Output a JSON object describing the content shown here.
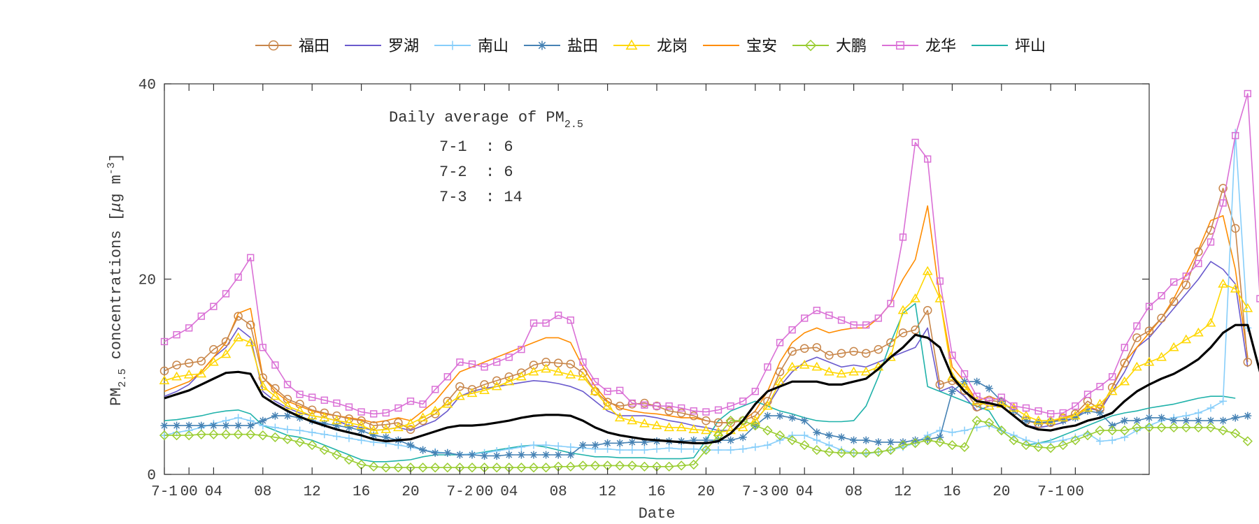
{
  "chart_data": {
    "type": "line",
    "xlabel": "Date",
    "ylabel": "PM2.5 concentrations [μg m-3]",
    "ylabel_parts": {
      "pm": "PM",
      "pm_sub": "2.5",
      "mid": " concentrations [",
      "mu": "μ",
      "unit": "g m",
      "sup": "-3",
      "end": "]"
    },
    "ylim": [
      0,
      40
    ],
    "yticks": [
      0,
      20,
      40
    ],
    "x_tick_labels": [
      "7-1",
      "00",
      "04",
      "08",
      "12",
      "16",
      "20",
      "7-2",
      "00",
      "04",
      "08",
      "12",
      "16",
      "20",
      "7-3",
      "00",
      "04",
      "08",
      "12",
      "16",
      "20",
      "7-1",
      "00"
    ],
    "x_tick_hours": [
      0,
      2,
      4,
      8,
      12,
      16,
      20,
      24,
      26,
      28,
      32,
      36,
      40,
      44,
      48,
      50,
      52,
      56,
      60,
      64,
      68,
      72,
      74
    ],
    "x_range": [
      0,
      80
    ],
    "legend_position": "top",
    "grid": false,
    "annotation": {
      "title_prefix": "Daily average of PM",
      "title_sub": "2.5",
      "lines": [
        "7-1  : 6",
        "7-2  : 6",
        "7-3  : 14"
      ]
    },
    "series": [
      {
        "name": "福田",
        "color": "#c8864a",
        "marker": "circle",
        "values": [
          10.6,
          11.2,
          11.4,
          11.6,
          12.8,
          13.6,
          16.2,
          15.3,
          9.9,
          8.8,
          7.7,
          7.2,
          6.6,
          6.3,
          6.0,
          5.7,
          5.5,
          5.0,
          5.1,
          5.3,
          4.6,
          5.5,
          6.2,
          7.5,
          9.0,
          8.7,
          9.2,
          9.6,
          10.0,
          10.4,
          11.2,
          11.5,
          11.4,
          11.3,
          10.4,
          8.5,
          7.4,
          7.0,
          7.2,
          7.3,
          7.0,
          6.5,
          6.3,
          6.0,
          5.5,
          5.3,
          5.3,
          5.5,
          6.0,
          7.5,
          10.5,
          12.6,
          12.9,
          13.0,
          12.2,
          12.4,
          12.6,
          12.4,
          12.8,
          13.5,
          14.5,
          14.8,
          16.8,
          9.2,
          9.6,
          8.6,
          6.9,
          7.6,
          7.4,
          6.5,
          5.5,
          5.2,
          5.3,
          5.8,
          6.2,
          7.5,
          6.7,
          8.9,
          11.4,
          14.0,
          14.7,
          16.0,
          17.7,
          19.4,
          22.8,
          25.0,
          29.3,
          25.2,
          11.5
        ]
      },
      {
        "name": "罗湖",
        "color": "#6a5acd",
        "marker": "none",
        "values": [
          8.0,
          8.5,
          9.2,
          10.5,
          12.0,
          13.0,
          15.0,
          14.0,
          8.5,
          7.5,
          6.8,
          6.3,
          6.0,
          5.8,
          5.5,
          5.0,
          4.8,
          4.5,
          4.6,
          4.8,
          4.5,
          5.0,
          5.5,
          6.5,
          8.0,
          8.5,
          8.8,
          9.0,
          9.2,
          9.4,
          9.6,
          9.5,
          9.3,
          9.0,
          8.5,
          7.5,
          6.5,
          6.0,
          6.0,
          6.0,
          5.8,
          5.5,
          5.3,
          5.0,
          4.8,
          4.5,
          4.5,
          4.8,
          5.5,
          7.0,
          9.0,
          10.5,
          11.5,
          12.0,
          11.5,
          11.0,
          11.2,
          11.0,
          11.5,
          12.0,
          12.5,
          13.0,
          15.0,
          8.5,
          9.0,
          8.0,
          6.5,
          7.0,
          7.0,
          6.0,
          5.0,
          4.8,
          5.0,
          5.3,
          5.8,
          6.8,
          6.5,
          8.5,
          10.5,
          13.0,
          14.0,
          15.5,
          17.0,
          18.5,
          20.0,
          21.8,
          21.0,
          19.5,
          11.0
        ]
      },
      {
        "name": "南山",
        "color": "#87cefa",
        "marker": "plus",
        "values": [
          4.0,
          4.3,
          4.5,
          4.8,
          5.2,
          5.5,
          5.8,
          5.5,
          5.0,
          4.8,
          4.6,
          4.5,
          4.3,
          4.1,
          3.9,
          3.7,
          3.5,
          3.3,
          3.2,
          3.0,
          2.8,
          2.5,
          2.3,
          2.2,
          2.0,
          2.1,
          2.2,
          2.4,
          2.6,
          2.8,
          3.0,
          3.0,
          2.9,
          2.8,
          2.7,
          2.6,
          2.6,
          2.5,
          2.5,
          2.5,
          2.6,
          2.7,
          2.6,
          2.6,
          2.5,
          2.5,
          2.5,
          2.6,
          2.8,
          3.0,
          3.5,
          4.0,
          4.0,
          3.5,
          3.0,
          2.5,
          2.2,
          2.1,
          2.3,
          2.5,
          2.8,
          3.2,
          4.0,
          4.5,
          4.3,
          4.5,
          4.8,
          5.0,
          4.5,
          4.0,
          3.5,
          3.2,
          3.3,
          3.5,
          3.8,
          4.2,
          3.4,
          3.5,
          3.8,
          4.5,
          5.0,
          5.5,
          5.8,
          6.0,
          6.3,
          6.8,
          7.5,
          35.0,
          15.0
        ]
      },
      {
        "name": "盐田",
        "color": "#4682b4",
        "marker": "asterisk",
        "values": [
          5.0,
          5.0,
          5.0,
          5.0,
          5.0,
          5.0,
          5.0,
          5.0,
          5.5,
          6.0,
          6.0,
          5.8,
          5.5,
          5.2,
          5.0,
          4.8,
          4.5,
          4.0,
          3.8,
          3.5,
          3.0,
          2.5,
          2.2,
          2.2,
          2.0,
          2.0,
          1.9,
          1.9,
          2.0,
          2.0,
          2.0,
          2.0,
          2.0,
          2.0,
          3.0,
          3.0,
          3.2,
          3.2,
          3.3,
          3.3,
          3.4,
          3.4,
          3.4,
          3.5,
          3.5,
          3.5,
          3.5,
          3.8,
          5.0,
          6.0,
          6.0,
          5.8,
          5.5,
          4.3,
          4.0,
          3.8,
          3.5,
          3.5,
          3.3,
          3.3,
          3.3,
          3.5,
          3.6,
          3.8,
          8.5,
          9.5,
          9.5,
          8.8,
          7.5,
          6.5,
          5.5,
          5.3,
          5.4,
          5.5,
          5.8,
          6.5,
          6.3,
          5.0,
          5.5,
          5.5,
          5.8,
          5.8,
          5.5,
          5.5,
          5.5,
          5.5,
          5.5,
          5.8,
          6.0
        ]
      },
      {
        "name": "龙岗",
        "color": "#ffd700",
        "marker": "triangle",
        "values": [
          9.6,
          10.0,
          10.2,
          10.3,
          11.5,
          12.3,
          14.0,
          13.5,
          9.0,
          8.0,
          7.0,
          6.5,
          6.0,
          5.8,
          5.5,
          5.3,
          5.0,
          4.5,
          4.6,
          4.8,
          5.2,
          5.8,
          6.5,
          7.2,
          8.0,
          8.3,
          8.6,
          9.0,
          9.5,
          10.0,
          10.5,
          10.8,
          10.5,
          10.2,
          10.0,
          8.5,
          7.0,
          5.8,
          5.5,
          5.2,
          5.0,
          4.8,
          4.8,
          4.6,
          4.5,
          4.3,
          4.5,
          4.8,
          5.5,
          7.0,
          9.5,
          11.0,
          11.2,
          11.0,
          10.5,
          10.3,
          10.5,
          10.5,
          11.0,
          12.0,
          16.8,
          18.0,
          20.8,
          18.0,
          10.0,
          9.0,
          7.5,
          7.0,
          7.2,
          6.8,
          6.0,
          5.5,
          5.5,
          5.8,
          6.0,
          6.8,
          7.2,
          8.5,
          9.5,
          11.0,
          11.5,
          12.0,
          13.0,
          13.8,
          14.5,
          15.5,
          19.5,
          19.0,
          17.0
        ]
      },
      {
        "name": "宝安",
        "color": "#ff8c00",
        "marker": "none",
        "values": [
          8.5,
          9.0,
          9.5,
          10.5,
          12.0,
          13.5,
          16.5,
          17.0,
          10.0,
          8.5,
          7.5,
          7.0,
          6.5,
          6.2,
          6.0,
          5.8,
          5.6,
          5.3,
          5.5,
          5.8,
          5.5,
          6.5,
          7.5,
          9.0,
          10.5,
          11.0,
          11.5,
          12.0,
          12.5,
          13.0,
          13.5,
          14.0,
          14.0,
          13.5,
          11.0,
          9.0,
          7.5,
          6.8,
          6.5,
          6.3,
          6.2,
          6.0,
          5.8,
          5.8,
          5.5,
          5.3,
          5.3,
          5.5,
          6.5,
          8.5,
          11.5,
          13.5,
          14.5,
          15.0,
          14.5,
          14.8,
          15.0,
          15.0,
          16.0,
          17.5,
          20.0,
          22.0,
          27.5,
          18.0,
          11.0,
          9.5,
          7.5,
          8.0,
          7.5,
          6.5,
          5.5,
          5.2,
          5.3,
          5.7,
          6.0,
          7.0,
          6.5,
          9.0,
          11.5,
          13.0,
          14.5,
          16.0,
          18.0,
          20.5,
          23.0,
          26.0,
          26.5,
          21.0,
          12.0
        ]
      },
      {
        "name": "大鹏",
        "color": "#9acd32",
        "marker": "diamond",
        "values": [
          4.0,
          4.0,
          4.0,
          4.1,
          4.1,
          4.1,
          4.1,
          4.1,
          4.0,
          3.8,
          3.6,
          3.3,
          3.0,
          2.5,
          2.0,
          1.5,
          1.0,
          0.8,
          0.7,
          0.7,
          0.7,
          0.7,
          0.7,
          0.7,
          0.7,
          0.7,
          0.7,
          0.7,
          0.7,
          0.7,
          0.7,
          0.7,
          0.8,
          0.8,
          0.9,
          0.9,
          0.9,
          0.9,
          0.9,
          0.8,
          0.8,
          0.8,
          0.9,
          1.0,
          2.5,
          4.0,
          5.5,
          5.5,
          5.0,
          4.5,
          4.0,
          3.5,
          3.0,
          2.5,
          2.3,
          2.2,
          2.2,
          2.2,
          2.3,
          2.5,
          3.0,
          3.2,
          3.5,
          3.3,
          3.0,
          2.8,
          5.5,
          5.3,
          4.5,
          3.5,
          3.0,
          2.8,
          2.7,
          3.0,
          3.5,
          4.0,
          4.5,
          4.5,
          4.5,
          4.8,
          4.8,
          4.8,
          4.8,
          4.8,
          4.8,
          4.8,
          4.5,
          4.2,
          3.4
        ]
      },
      {
        "name": "龙华",
        "color": "#da70d6",
        "marker": "square",
        "values": [
          13.6,
          14.3,
          15.0,
          16.2,
          17.2,
          18.5,
          20.2,
          22.2,
          13.0,
          11.2,
          9.2,
          8.2,
          7.9,
          7.6,
          7.3,
          6.9,
          6.4,
          6.2,
          6.3,
          6.8,
          7.5,
          7.2,
          8.7,
          10.0,
          11.5,
          11.3,
          11.0,
          11.5,
          12.0,
          12.8,
          15.5,
          15.5,
          16.3,
          15.8,
          11.5,
          9.5,
          8.5,
          8.6,
          7.3,
          7.1,
          7.0,
          7.0,
          6.8,
          6.5,
          6.4,
          6.6,
          7.0,
          7.5,
          8.5,
          11.0,
          13.5,
          14.8,
          16.0,
          16.8,
          16.3,
          15.8,
          15.3,
          15.3,
          16.0,
          17.5,
          24.3,
          34.0,
          32.3,
          19.8,
          12.2,
          10.3,
          8.0,
          7.5,
          7.9,
          7.0,
          6.8,
          6.5,
          6.2,
          6.3,
          7.0,
          8.2,
          9.0,
          10.0,
          13.0,
          15.2,
          17.2,
          18.3,
          19.7,
          20.3,
          21.6,
          23.8,
          27.8,
          34.7,
          39.0,
          18.0
        ]
      },
      {
        "name": "坪山",
        "color": "#20b2aa",
        "marker": "none",
        "values": [
          5.5,
          5.6,
          5.8,
          6.0,
          6.3,
          6.5,
          6.6,
          6.2,
          5.0,
          4.5,
          4.0,
          3.8,
          3.5,
          3.0,
          2.5,
          2.0,
          1.5,
          1.3,
          1.3,
          1.4,
          1.5,
          1.8,
          2.0,
          2.0,
          2.0,
          2.1,
          2.3,
          2.5,
          2.7,
          2.9,
          3.0,
          2.8,
          2.5,
          2.2,
          2.0,
          1.8,
          1.8,
          1.7,
          1.7,
          1.7,
          1.6,
          1.6,
          1.6,
          1.7,
          3.5,
          5.5,
          6.5,
          7.0,
          7.5,
          7.0,
          6.5,
          6.2,
          5.8,
          5.5,
          5.4,
          5.4,
          5.5,
          7.0,
          10.0,
          13.5,
          16.5,
          17.5,
          9.0,
          8.5,
          8.0,
          7.5,
          7.0,
          6.5,
          4.5,
          3.5,
          3.0,
          3.2,
          3.5,
          4.0,
          4.5,
          5.0,
          5.5,
          6.0,
          6.3,
          6.5,
          6.8,
          7.0,
          7.2,
          7.5,
          7.8,
          8.0,
          8.0,
          7.8
        ]
      }
    ],
    "average_series": {
      "color": "#000000",
      "values": [
        7.8,
        8.2,
        8.6,
        9.2,
        9.8,
        10.4,
        10.5,
        10.3,
        8.0,
        7.2,
        6.5,
        5.9,
        5.4,
        5.0,
        4.6,
        4.3,
        4.0,
        3.6,
        3.4,
        3.5,
        3.6,
        4.0,
        4.4,
        4.8,
        5.0,
        5.0,
        5.1,
        5.3,
        5.5,
        5.8,
        6.0,
        6.1,
        6.1,
        6.0,
        5.5,
        4.8,
        4.3,
        4.0,
        3.8,
        3.6,
        3.5,
        3.4,
        3.3,
        3.2,
        3.2,
        3.4,
        4.2,
        5.5,
        7.2,
        8.5,
        9.0,
        9.5,
        9.5,
        9.5,
        9.2,
        9.2,
        9.5,
        9.8,
        10.8,
        12.0,
        13.0,
        14.3,
        14.0,
        13.0,
        10.0,
        8.5,
        7.5,
        7.3,
        7.0,
        6.0,
        5.0,
        4.6,
        4.5,
        4.8,
        5.0,
        5.5,
        5.8,
        6.3,
        7.5,
        8.5,
        9.2,
        9.8,
        10.3,
        11.0,
        11.8,
        13.0,
        14.5,
        15.3,
        15.3,
        10.5
      ]
    }
  }
}
